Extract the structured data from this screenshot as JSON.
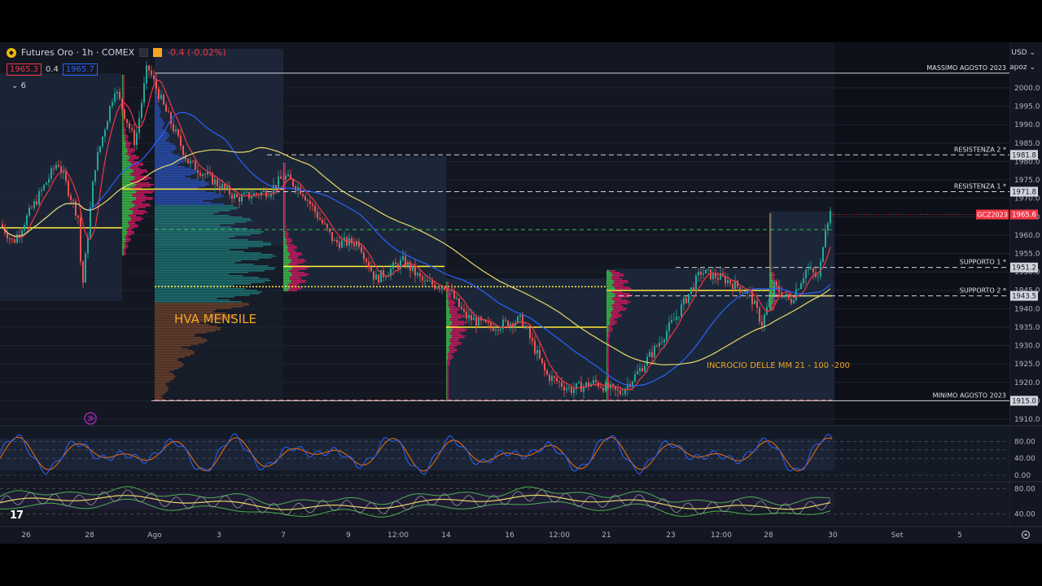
{
  "header": {
    "symbol_title": "Futures Oro · 1h · COMEX",
    "change": "-0.4 (-0.02%)",
    "bid": "1965.3",
    "spread": "0.4",
    "ask": "1965.7",
    "indicator_count": "6",
    "currency": "USD",
    "scale_mode": "apoz"
  },
  "chart_data": [
    {
      "type": "candlestick",
      "instrument": "GCZ2023",
      "last_price": 1965.6,
      "ylim": [
        1908,
        2010
      ],
      "y_ticks": [
        1910.0,
        1915.0,
        1920.0,
        1925.0,
        1930.0,
        1935.0,
        1940.0,
        1945.0,
        1950.0,
        1955.0,
        1960.0,
        1965.0,
        1970.0,
        1975.0,
        1980.0,
        1985.0,
        1990.0,
        1995.0,
        2000.0
      ],
      "x_ticks": [
        "26",
        "28",
        "Ago",
        "3",
        "7",
        "9",
        "12:00",
        "14",
        "16",
        "12:00",
        "21",
        "23",
        "12:00",
        "28",
        "30",
        "Set",
        "5"
      ],
      "annotations": [
        "HVA MENSILE",
        "INCROCIO DELLE MM 21 - 100 -200"
      ],
      "levels": [
        {
          "label": "MASSIMO AGOSTO 2023",
          "value": 2004.0
        },
        {
          "label": "RESISTENZA 2",
          "value": 1981.8
        },
        {
          "label": "RESISTENZA 1",
          "value": 1971.8
        },
        {
          "label": "SUPPORTO 1",
          "value": 1951.2
        },
        {
          "label": "SUPPORTO 2",
          "value": 1943.5
        },
        {
          "label": "MINIMO AGOSTO 2023",
          "value": 1915.0
        }
      ],
      "price_tags": [
        {
          "text": "1981.8",
          "value": 1981.8
        },
        {
          "text": "1971.8",
          "value": 1971.8
        },
        {
          "text": "1965.6",
          "value": 1965.6
        },
        {
          "text": "1951.2",
          "value": 1951.2
        },
        {
          "text": "1943.5",
          "value": 1943.5
        },
        {
          "text": "1915.0",
          "value": 1915.0
        }
      ],
      "colors": {
        "up": "#26a69a",
        "down": "#ef5350",
        "ma21": "#f23645",
        "ma100": "#2962ff",
        "ma200": "#e8d76a",
        "poc": "#ffeb3b",
        "level": "#d1d4dc"
      }
    },
    {
      "type": "line",
      "panel": "oscillator-1",
      "ylim": [
        0,
        100
      ],
      "y_ticks": [
        0.0,
        40.0,
        80.0
      ]
    },
    {
      "type": "line",
      "panel": "oscillator-2",
      "ylim": [
        20,
        90
      ],
      "y_ticks": [
        40.0,
        80.0
      ]
    }
  ]
}
